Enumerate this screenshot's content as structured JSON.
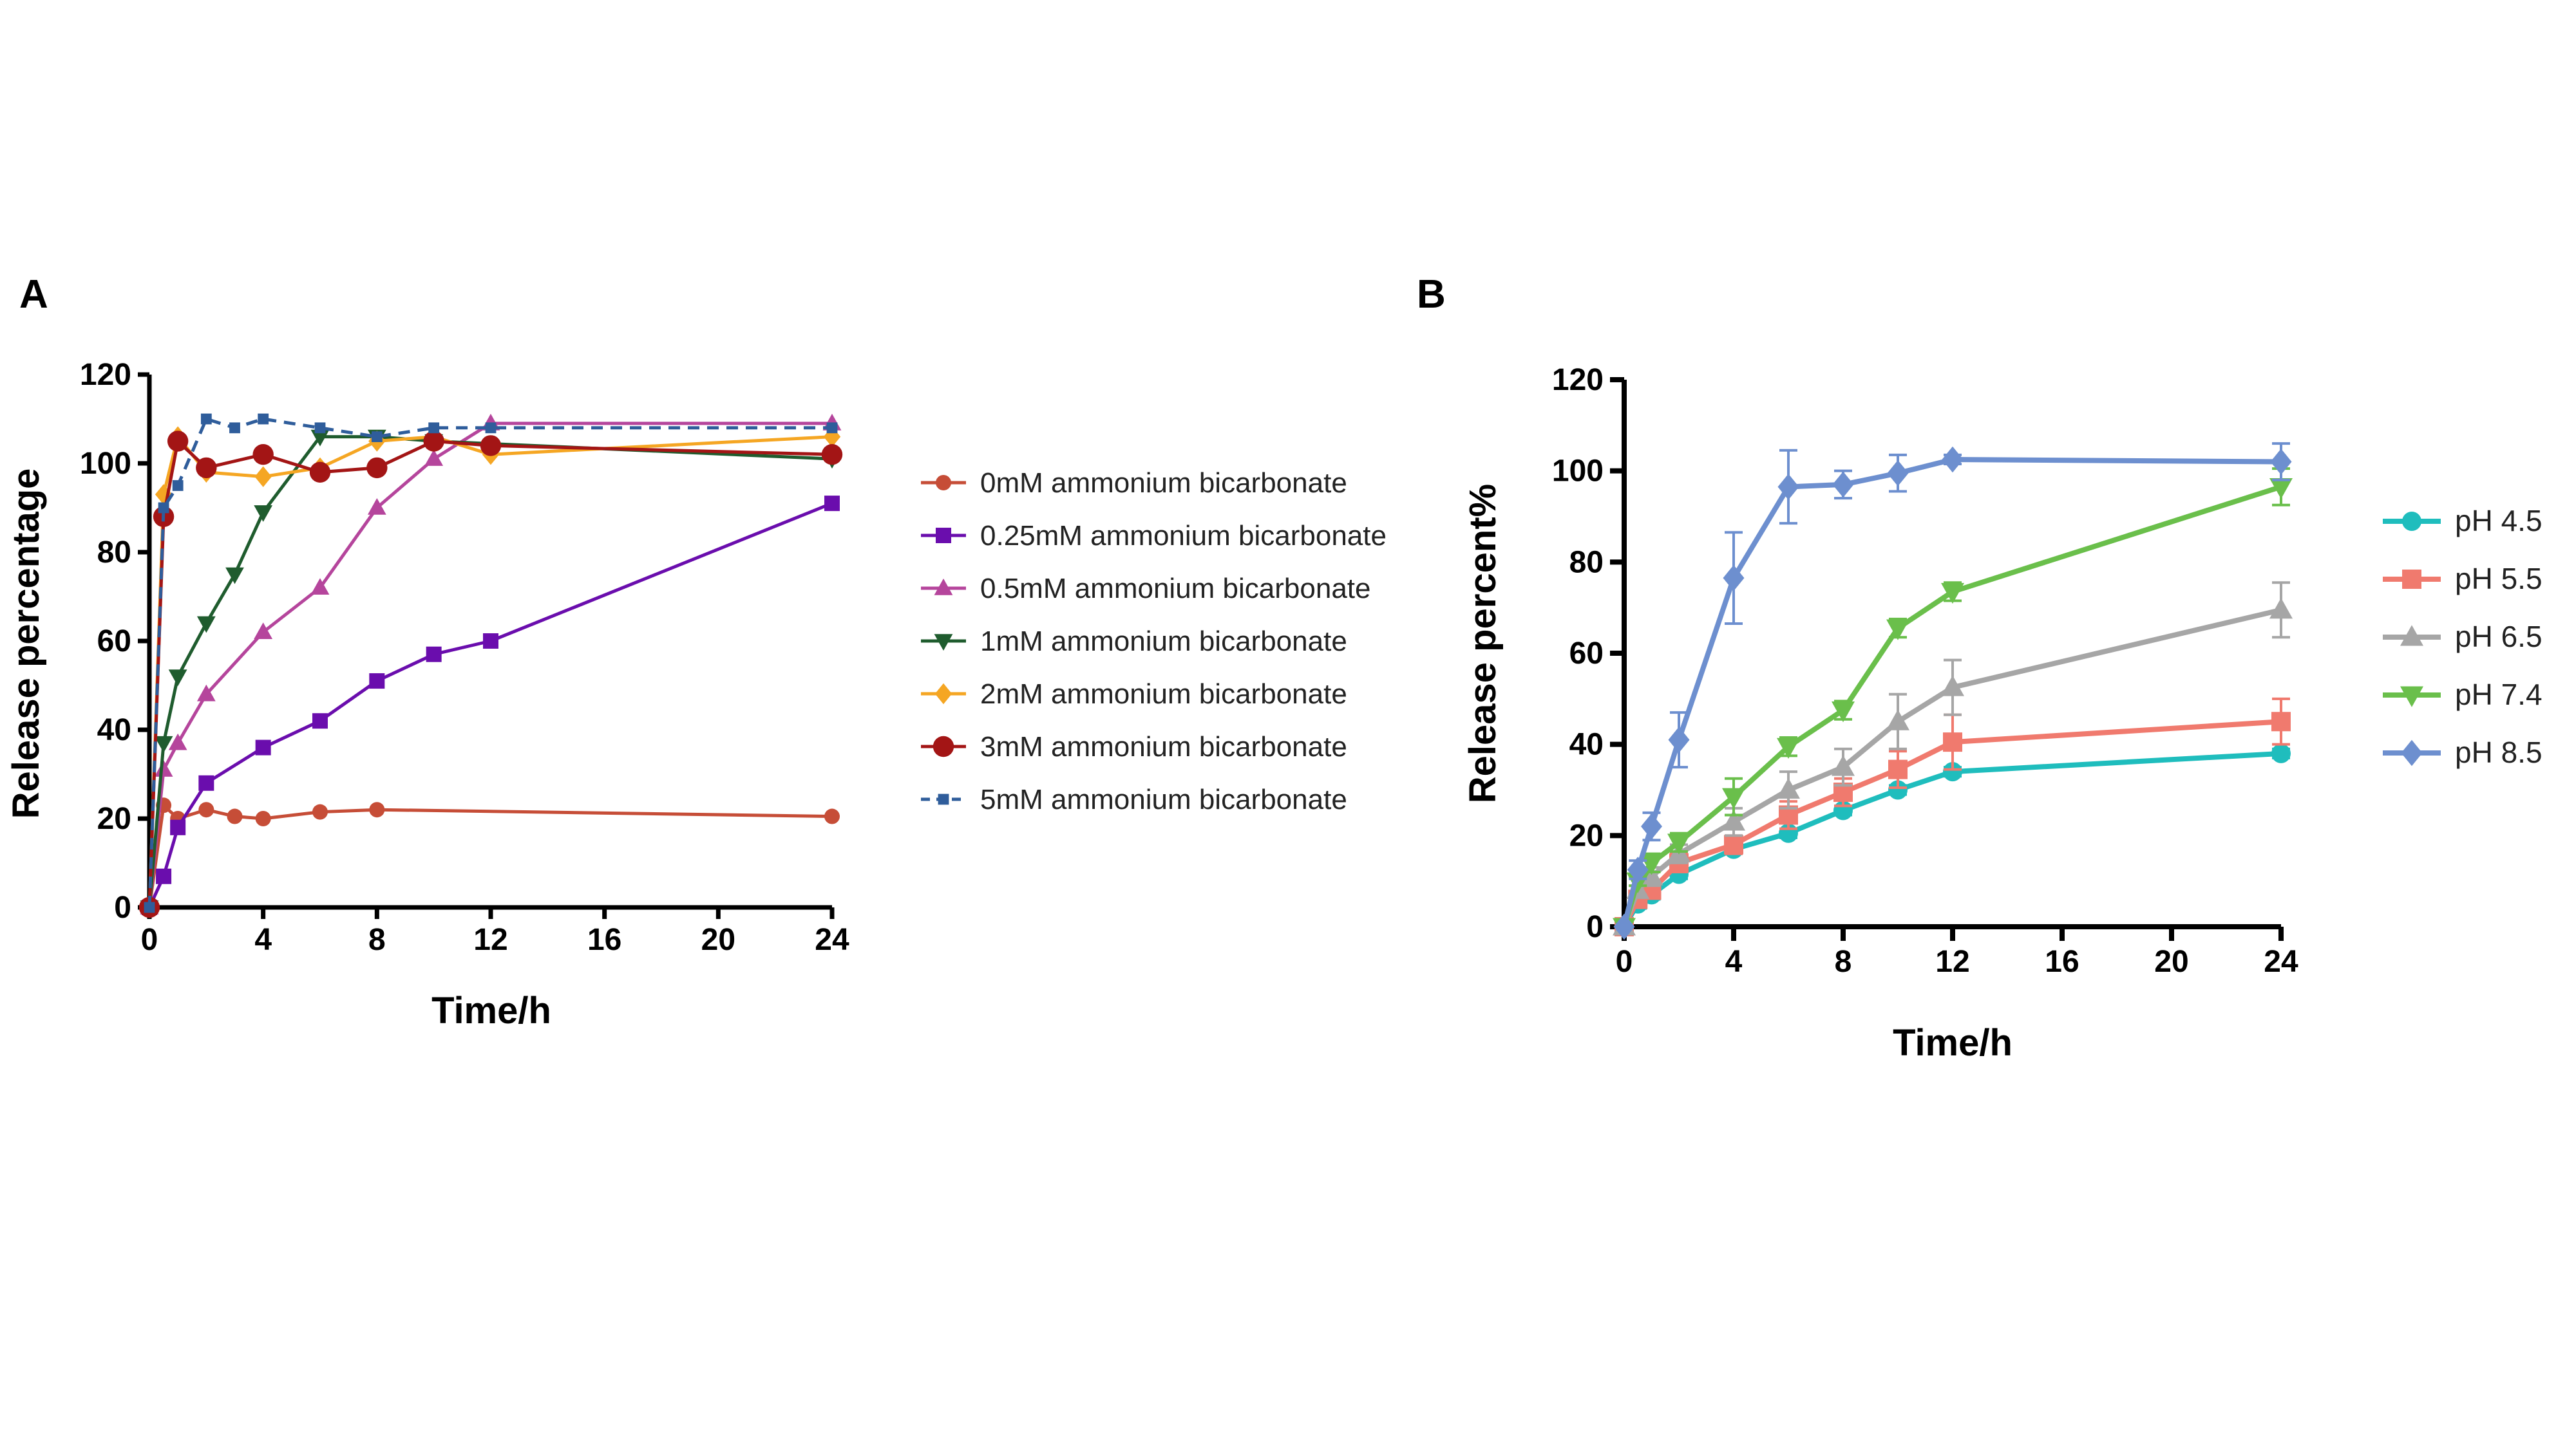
{
  "chart_data": [
    {
      "panel_label": "A",
      "type": "line",
      "xlabel": "Time/h",
      "ylabel": "Release percentage",
      "xlim": [
        0,
        24
      ],
      "ylim": [
        0,
        120
      ],
      "xticks": [
        "0",
        "4",
        "8",
        "12",
        "16",
        "20",
        "24"
      ],
      "yticks": [
        "0",
        "20",
        "40",
        "60",
        "80",
        "100",
        "120"
      ],
      "grid": false,
      "legend_position": "right",
      "series": [
        {
          "name": "0mM ammonium bicarbonate",
          "color": "#c64d37",
          "marker": "circle",
          "dash": false,
          "x": [
            0,
            0.5,
            1,
            2,
            3,
            4,
            6,
            8,
            24
          ],
          "y": [
            0,
            23,
            20,
            22,
            20.5,
            20,
            21.5,
            22,
            20.5
          ]
        },
        {
          "name": "0.25mM ammonium bicarbonate",
          "color": "#6a0dad",
          "marker": "square",
          "dash": false,
          "x": [
            0,
            0.5,
            1,
            2,
            4,
            6,
            8,
            10,
            12,
            24
          ],
          "y": [
            0,
            7,
            18,
            28,
            36,
            42,
            51,
            57,
            60,
            91
          ]
        },
        {
          "name": "0.5mM ammonium bicarbonate",
          "color": "#b5459c",
          "marker": "triangle-up",
          "dash": false,
          "x": [
            0,
            0.5,
            1,
            2,
            4,
            6,
            8,
            10,
            12,
            24
          ],
          "y": [
            0,
            31,
            37,
            48,
            62,
            72,
            90,
            101,
            109,
            109
          ]
        },
        {
          "name": "1mM ammonium bicarbonate",
          "color": "#1f5c2e",
          "marker": "triangle-down",
          "dash": false,
          "x": [
            0,
            0.5,
            1,
            2,
            3,
            4,
            6,
            8,
            10,
            24
          ],
          "y": [
            0,
            37,
            52,
            64,
            75,
            89,
            106,
            106,
            105,
            101
          ]
        },
        {
          "name": "2mM ammonium bicarbonate",
          "color": "#f5a623",
          "marker": "diamond",
          "dash": false,
          "x": [
            0,
            0.5,
            1,
            2,
            4,
            6,
            8,
            10,
            12,
            24
          ],
          "y": [
            0,
            93,
            106,
            98,
            97,
            99,
            105,
            106,
            102,
            106
          ]
        },
        {
          "name": "3mM ammonium bicarbonate",
          "color": "#a31515",
          "marker": "circle-large",
          "dash": false,
          "x": [
            0,
            0.5,
            1,
            2,
            4,
            6,
            8,
            10,
            12,
            24
          ],
          "y": [
            0,
            88,
            105,
            99,
            102,
            98,
            99,
            105,
            104,
            102
          ]
        },
        {
          "name": "5mM ammonium bicarbonate",
          "color": "#2f5d9b",
          "marker": "square-small",
          "dash": true,
          "x": [
            0,
            0.5,
            1,
            2,
            3,
            4,
            6,
            8,
            10,
            12,
            24
          ],
          "y": [
            0,
            90,
            95,
            110,
            108,
            110,
            108,
            106,
            108,
            108,
            108
          ]
        }
      ]
    },
    {
      "panel_label": "B",
      "type": "line",
      "xlabel": "Time/h",
      "ylabel": "Release percent%",
      "xlim": [
        0,
        24
      ],
      "ylim": [
        0,
        120
      ],
      "xticks": [
        "0",
        "4",
        "8",
        "12",
        "16",
        "20",
        "24"
      ],
      "yticks": [
        "0",
        "20",
        "40",
        "60",
        "80",
        "100",
        "120"
      ],
      "grid": false,
      "legend_position": "right",
      "series": [
        {
          "name": "pH 4.5",
          "color": "#1fbdbd",
          "marker": "circle",
          "x": [
            0,
            0.5,
            1,
            2,
            4,
            6,
            8,
            10,
            12,
            24
          ],
          "y": [
            0,
            5,
            7,
            11.5,
            17,
            20.5,
            25.5,
            30,
            34,
            38
          ],
          "err": [
            0,
            1,
            1,
            1,
            1,
            1,
            1,
            1,
            1,
            1
          ]
        },
        {
          "name": "pH 5.5",
          "color": "#f07a6e",
          "marker": "square",
          "x": [
            0,
            0.5,
            1,
            2,
            4,
            6,
            8,
            10,
            12,
            24
          ],
          "y": [
            0,
            6,
            8,
            14,
            18,
            24.5,
            29.5,
            34.5,
            40.5,
            45
          ],
          "err": [
            0,
            1,
            1,
            2,
            2,
            3,
            3,
            4,
            6,
            5
          ]
        },
        {
          "name": "pH 6.5",
          "color": "#a6a6a6",
          "marker": "triangle-up",
          "x": [
            0,
            0.5,
            1,
            2,
            4,
            6,
            8,
            10,
            12,
            24
          ],
          "y": [
            0,
            8,
            11,
            16,
            23,
            30,
            35,
            45,
            52.5,
            69.5
          ],
          "err": [
            0,
            1,
            2,
            2,
            3,
            4,
            4,
            6,
            6,
            6
          ]
        },
        {
          "name": "pH 7.4",
          "color": "#6abf4b",
          "marker": "triangle-down",
          "x": [
            0,
            0.5,
            1,
            2,
            4,
            6,
            8,
            10,
            12,
            24
          ],
          "y": [
            0,
            10,
            14,
            18.5,
            28.5,
            39.5,
            47.5,
            65.5,
            73.5,
            96.5
          ],
          "err": [
            0,
            1,
            2,
            2,
            4,
            2,
            2,
            2,
            2,
            4
          ]
        },
        {
          "name": "pH 8.5",
          "color": "#6d8fcf",
          "marker": "diamond",
          "x": [
            0,
            0.5,
            1,
            2,
            4,
            6,
            8,
            10,
            12,
            24
          ],
          "y": [
            0,
            12.5,
            22,
            41,
            76.5,
            96.5,
            97,
            99.5,
            102.5,
            102
          ],
          "err": [
            0,
            2,
            3,
            6,
            10,
            8,
            3,
            4,
            1,
            4
          ]
        }
      ]
    }
  ]
}
